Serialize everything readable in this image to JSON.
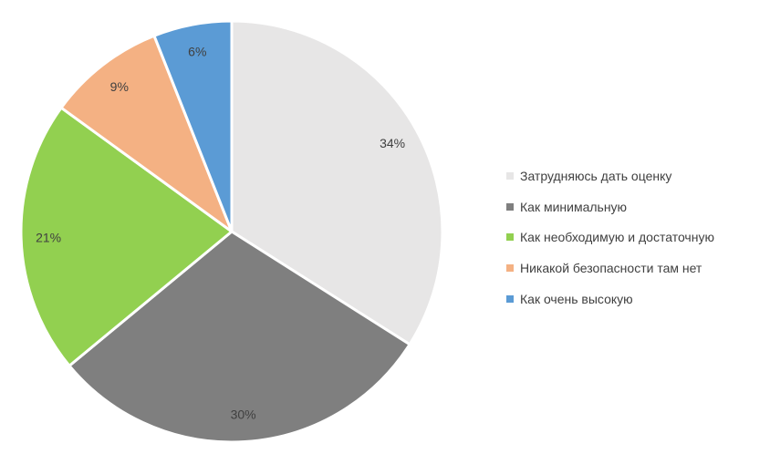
{
  "chart_data": {
    "type": "pie",
    "title": "",
    "slices": [
      {
        "label": "Затрудняюсь дать оценку",
        "value": 34,
        "display": "34%",
        "color": "#e7e6e6"
      },
      {
        "label": "Как минимальную",
        "value": 30,
        "display": "30%",
        "color": "#7f7f7f"
      },
      {
        "label": "Как необходимую и достаточную",
        "value": 21,
        "display": "21%",
        "color": "#92d050"
      },
      {
        "label": "Никакой безопасности там нет",
        "value": 9,
        "display": "9%",
        "color": "#f4b183"
      },
      {
        "label": "Как очень высокую",
        "value": 6,
        "display": "6%",
        "color": "#5b9bd5"
      }
    ],
    "start_angle": "12 o'clock",
    "direction": "clockwise",
    "legend": {
      "placement": "right"
    }
  }
}
